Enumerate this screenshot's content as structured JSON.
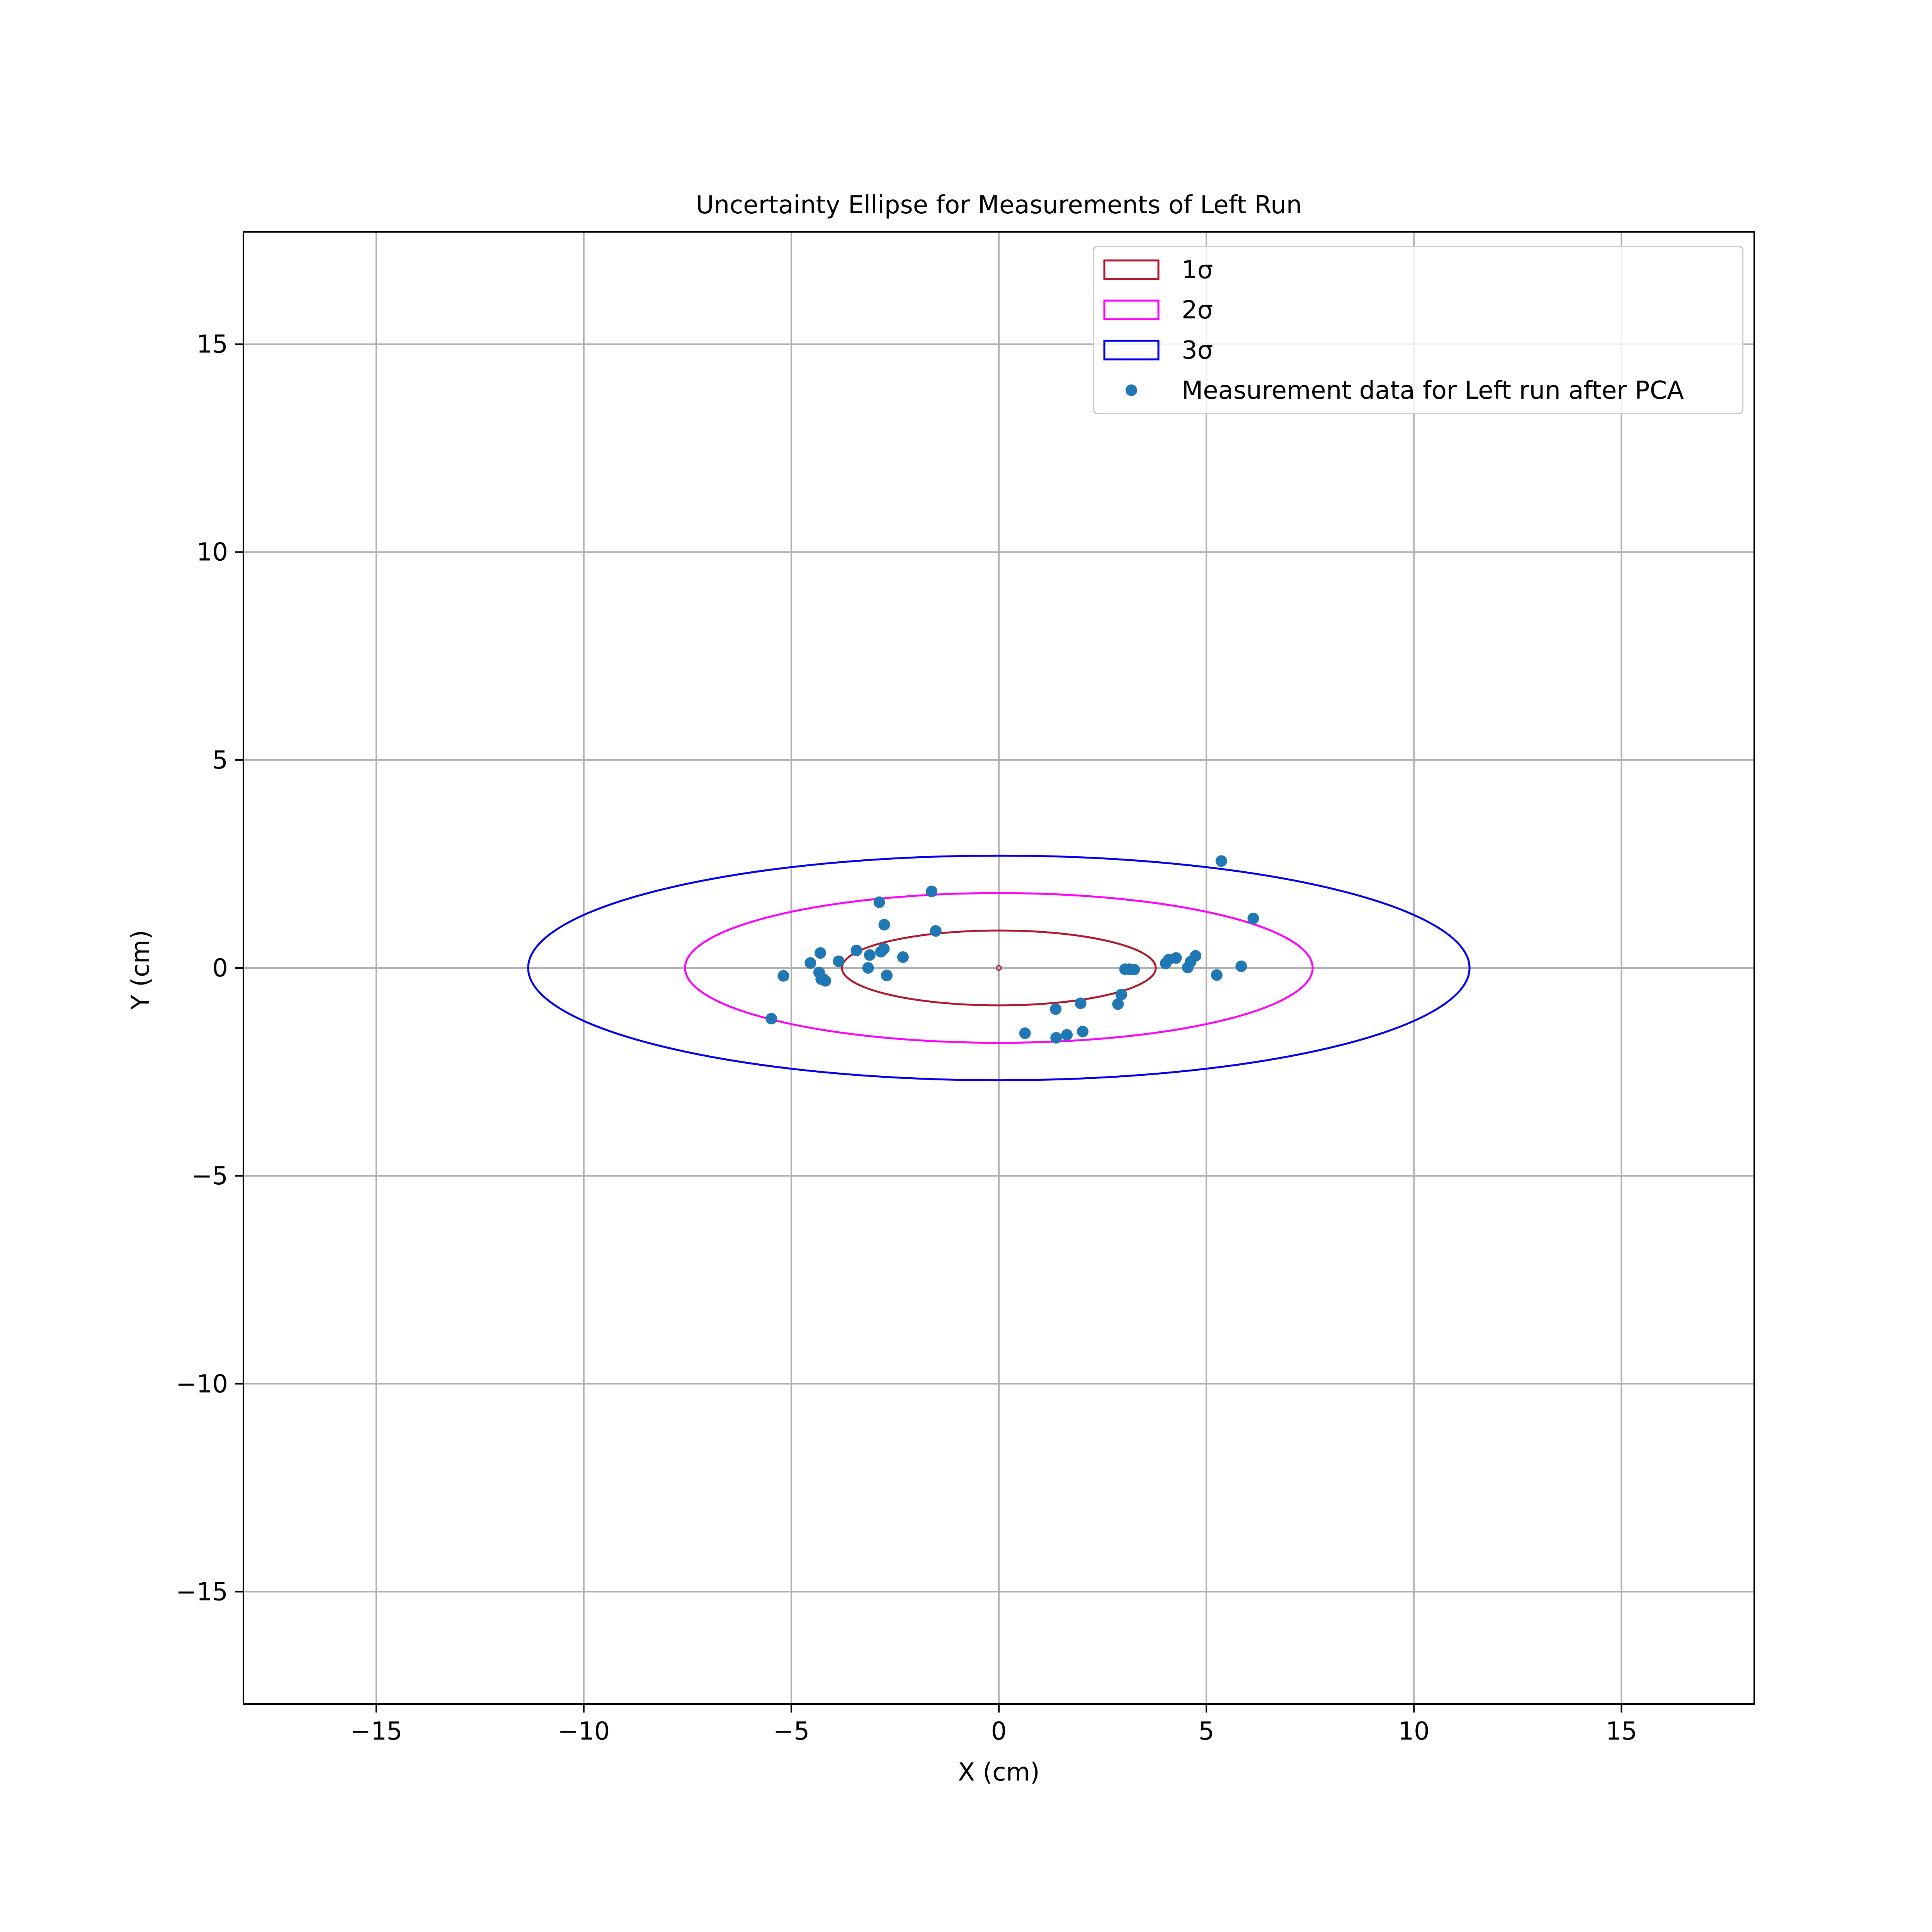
{
  "chart_data": {
    "type": "scatter",
    "title": "Uncertainty Ellipse for Measurements of Left Run",
    "xlabel": "X (cm)",
    "ylabel": "Y (cm)",
    "xlim": [
      -18.2,
      18.2
    ],
    "ylim": [
      -17.7,
      17.7
    ],
    "x_ticks": [
      -15,
      -10,
      -5,
      0,
      5,
      10,
      15
    ],
    "y_ticks": [
      -15,
      -10,
      -5,
      0,
      5,
      10,
      15
    ],
    "x_tick_labels": [
      "−15",
      "−10",
      "−5",
      "0",
      "5",
      "10",
      "15"
    ],
    "y_tick_labels": [
      "−15",
      "−10",
      "−5",
      "0",
      "5",
      "10",
      "15"
    ],
    "grid": true,
    "legend_position": "top-right",
    "center": {
      "x": 0,
      "y": 0
    },
    "ellipses": [
      {
        "label": "1σ",
        "sigma": 1,
        "semi_x": 3.78,
        "semi_y": 0.9,
        "color": "#b2182b"
      },
      {
        "label": "2σ",
        "sigma": 2,
        "semi_x": 7.56,
        "semi_y": 1.8,
        "color": "#ff00ff"
      },
      {
        "label": "3σ",
        "sigma": 3,
        "semi_x": 11.34,
        "semi_y": 2.7,
        "color": "#0000ee"
      }
    ],
    "series": [
      {
        "name": "Measurement data for Left run after PCA",
        "color": "#1f77b4",
        "x": [
          5.36,
          -1.62,
          -2.88,
          6.13,
          -2.76,
          -1.52,
          -2.77,
          -2.31,
          -2.84,
          -4.3,
          -3.43,
          -3.11,
          -3.15,
          -4.54,
          -3.86,
          -4.33,
          -5.19,
          -4.28,
          -4.18,
          -4.22,
          -2.7,
          -5.48,
          4.74,
          4.27,
          4.62,
          4.09,
          4.02,
          4.55,
          5.84,
          3.04,
          3.14,
          3.26,
          5.25,
          2.95,
          1.97,
          2.87,
          1.37,
          0.63,
          1.38,
          1.64,
          2.02
        ],
        "y": [
          2.57,
          1.84,
          1.58,
          1.19,
          1.04,
          0.89,
          0.46,
          0.26,
          0.39,
          0.36,
          0.42,
          0.31,
          0.0,
          0.12,
          0.16,
          -0.11,
          -0.19,
          -0.27,
          -0.31,
          -0.27,
          -0.18,
          -1.22,
          0.29,
          0.24,
          0.15,
          0.2,
          0.11,
          0.01,
          0.04,
          -0.03,
          -0.03,
          -0.04,
          -0.17,
          -0.64,
          -0.85,
          -0.87,
          -0.99,
          -1.57,
          -1.68,
          -1.61,
          -1.53
        ]
      }
    ]
  }
}
